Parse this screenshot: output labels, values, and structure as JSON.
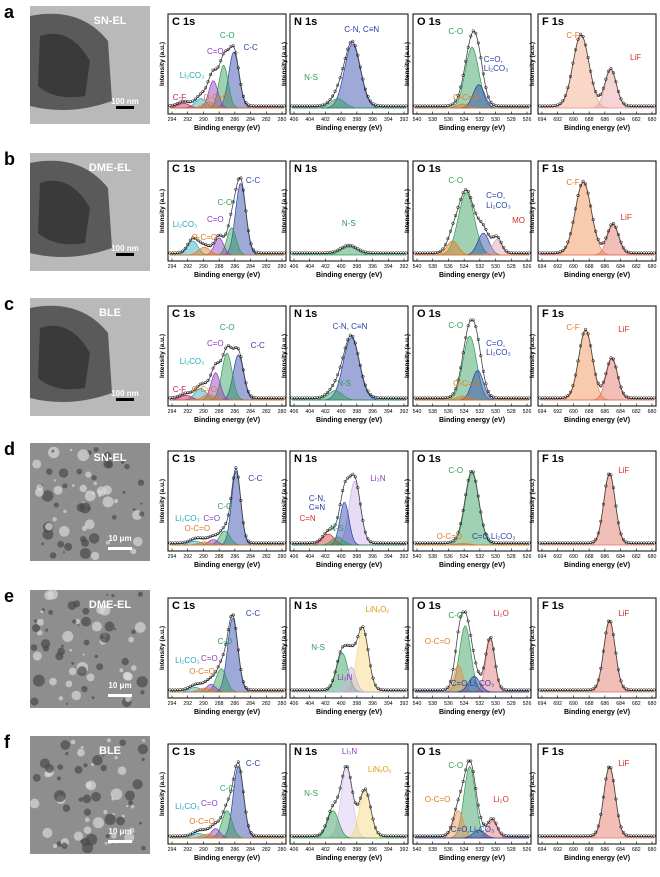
{
  "figure": {
    "rows": [
      {
        "letter": "a",
        "image_label": "SN-EL",
        "scale": "100 nm",
        "image_type": "tem",
        "panels": [
          {
            "title": "C 1s",
            "xticks": [
              "294",
              "292",
              "290",
              "288",
              "286",
              "284",
              "282",
              "280"
            ],
            "labels": [
              {
                "text": "C-O",
                "color": "#2e9a57"
              },
              {
                "text": "C=O",
                "color": "#8a3ab9"
              },
              {
                "text": "C-C",
                "color": "#2740a8"
              },
              {
                "text": "Li₂CO₃",
                "color": "#25a7b8"
              },
              {
                "text": "C-F",
                "color": "#c2185b"
              },
              {
                "text": "O-C=O",
                "color": "#e07a1f"
              }
            ]
          },
          {
            "title": "N 1s",
            "xticks": [
              "406",
              "404",
              "402",
              "400",
              "398",
              "396",
              "394",
              "392"
            ],
            "labels": [
              {
                "text": "C-N, C≡N",
                "color": "#2740a8"
              },
              {
                "text": "N-S",
                "color": "#2e9a57"
              }
            ]
          },
          {
            "title": "O 1s",
            "xticks": [
              "540",
              "538",
              "536",
              "534",
              "532",
              "530",
              "528",
              "526"
            ],
            "labels": [
              {
                "text": "C-O",
                "color": "#2e9a57"
              },
              {
                "text": "C=O,",
                "color": "#2740a8"
              },
              {
                "text": "Li₂CO₃",
                "color": "#2740a8"
              },
              {
                "text": "O-C=O",
                "color": "#e07a1f"
              }
            ]
          },
          {
            "title": "F 1s",
            "xticks": [
              "694",
              "692",
              "690",
              "688",
              "686",
              "684",
              "682",
              "680"
            ],
            "labels": [
              {
                "text": "C-F",
                "color": "#e07a1f"
              },
              {
                "text": "LiF",
                "color": "#d32f2f"
              }
            ]
          }
        ]
      },
      {
        "letter": "b",
        "image_label": "DME-EL",
        "scale": "100 nm",
        "image_type": "tem",
        "panels": [
          {
            "title": "C 1s",
            "xticks": [
              "294",
              "292",
              "290",
              "288",
              "286",
              "284",
              "282",
              "280"
            ],
            "labels": [
              {
                "text": "C-C",
                "color": "#2740a8"
              },
              {
                "text": "C-O",
                "color": "#2e9a57"
              },
              {
                "text": "C=O",
                "color": "#8a3ab9"
              },
              {
                "text": "Li₂CO₃",
                "color": "#25a7b8"
              },
              {
                "text": "O-C=O",
                "color": "#e07a1f"
              }
            ]
          },
          {
            "title": "N 1s",
            "xticks": [
              "406",
              "404",
              "402",
              "400",
              "398",
              "396",
              "394",
              "392"
            ],
            "labels": [
              {
                "text": "N-S",
                "color": "#2e9a57"
              }
            ]
          },
          {
            "title": "O 1s",
            "xticks": [
              "540",
              "538",
              "536",
              "534",
              "532",
              "530",
              "528",
              "526"
            ],
            "labels": [
              {
                "text": "C-O",
                "color": "#2e9a57"
              },
              {
                "text": "C=O,",
                "color": "#2740a8"
              },
              {
                "text": "Li₂CO₃",
                "color": "#2740a8"
              },
              {
                "text": "MO",
                "color": "#d32f2f"
              }
            ]
          },
          {
            "title": "F 1s",
            "xticks": [
              "694",
              "692",
              "690",
              "688",
              "686",
              "684",
              "682",
              "680"
            ],
            "labels": [
              {
                "text": "C-F",
                "color": "#e07a1f"
              },
              {
                "text": "LiF",
                "color": "#d32f2f"
              }
            ]
          }
        ]
      },
      {
        "letter": "c",
        "image_label": "BLE",
        "scale": "100 nm",
        "image_type": "tem",
        "panels": [
          {
            "title": "C 1s",
            "xticks": [
              "294",
              "292",
              "290",
              "288",
              "286",
              "284",
              "282",
              "280"
            ],
            "labels": [
              {
                "text": "C-O",
                "color": "#2e9a57"
              },
              {
                "text": "C=O",
                "color": "#8a3ab9"
              },
              {
                "text": "C-C",
                "color": "#2740a8"
              },
              {
                "text": "Li₂CO₃",
                "color": "#25a7b8"
              },
              {
                "text": "C-F",
                "color": "#c2185b"
              },
              {
                "text": "O-C=O",
                "color": "#e07a1f"
              }
            ]
          },
          {
            "title": "N 1s",
            "xticks": [
              "406",
              "404",
              "402",
              "400",
              "398",
              "396",
              "394",
              "392"
            ],
            "labels": [
              {
                "text": "C-N, C≡N",
                "color": "#2740a8"
              },
              {
                "text": "N-S",
                "color": "#2e9a57"
              }
            ]
          },
          {
            "title": "O 1s",
            "xticks": [
              "540",
              "538",
              "536",
              "534",
              "532",
              "530",
              "528",
              "526"
            ],
            "labels": [
              {
                "text": "C-O",
                "color": "#2e9a57"
              },
              {
                "text": "C=O,",
                "color": "#2740a8"
              },
              {
                "text": "Li₂CO₃",
                "color": "#2740a8"
              },
              {
                "text": "O-C=O",
                "color": "#e07a1f"
              }
            ]
          },
          {
            "title": "F 1s",
            "xticks": [
              "694",
              "692",
              "690",
              "688",
              "686",
              "684",
              "682",
              "680"
            ],
            "labels": [
              {
                "text": "C-F",
                "color": "#e07a1f"
              },
              {
                "text": "LiF",
                "color": "#d32f2f"
              }
            ]
          }
        ]
      },
      {
        "letter": "d",
        "image_label": "SN-EL",
        "scale": "10 μm",
        "image_type": "sem",
        "panels": [
          {
            "title": "C 1s",
            "xticks": [
              "294",
              "292",
              "290",
              "288",
              "286",
              "284",
              "282",
              "280"
            ],
            "labels": [
              {
                "text": "C-C",
                "color": "#2740a8"
              },
              {
                "text": "C-O",
                "color": "#2e9a57"
              },
              {
                "text": "Li₂CO₃",
                "color": "#25a7b8"
              },
              {
                "text": "C=O",
                "color": "#8a3ab9"
              },
              {
                "text": "O-C=O",
                "color": "#e07a1f"
              }
            ]
          },
          {
            "title": "N 1s",
            "xticks": [
              "406",
              "404",
              "402",
              "400",
              "398",
              "396",
              "394",
              "392"
            ],
            "labels": [
              {
                "text": "Li₃N",
                "color": "#8a3ab9"
              },
              {
                "text": "C-N,",
                "color": "#2740a8"
              },
              {
                "text": "C≡N",
                "color": "#2740a8"
              },
              {
                "text": "C=N",
                "color": "#d32f2f"
              },
              {
                "text": "N-S",
                "color": "#2e9a57"
              }
            ]
          },
          {
            "title": "O 1s",
            "xticks": [
              "540",
              "538",
              "536",
              "534",
              "532",
              "530",
              "528",
              "526"
            ],
            "labels": [
              {
                "text": "C-O",
                "color": "#2e9a57"
              },
              {
                "text": "O-C=O",
                "color": "#e07a1f"
              },
              {
                "text": "C=O,Li₂CO₃",
                "color": "#2740a8"
              }
            ]
          },
          {
            "title": "F 1s",
            "xticks": [
              "694",
              "692",
              "690",
              "688",
              "686",
              "684",
              "682",
              "680"
            ],
            "labels": [
              {
                "text": "LiF",
                "color": "#d32f2f"
              }
            ]
          }
        ]
      },
      {
        "letter": "e",
        "image_label": "DME-EL",
        "scale": "10 μm",
        "image_type": "sem",
        "panels": [
          {
            "title": "C 1s",
            "xticks": [
              "294",
              "292",
              "290",
              "288",
              "286",
              "284",
              "282",
              "280"
            ],
            "labels": [
              {
                "text": "C-C",
                "color": "#2740a8"
              },
              {
                "text": "C-O",
                "color": "#2e9a57"
              },
              {
                "text": "Li₂CO₃",
                "color": "#25a7b8"
              },
              {
                "text": "C=O",
                "color": "#8a3ab9"
              },
              {
                "text": "O-C=O",
                "color": "#e07a1f"
              }
            ]
          },
          {
            "title": "N 1s",
            "xticks": [
              "406",
              "404",
              "402",
              "400",
              "398",
              "396",
              "394",
              "392"
            ],
            "labels": [
              {
                "text": "LiNₓOᵧ",
                "color": "#d4a017"
              },
              {
                "text": "N-S",
                "color": "#2e9a57"
              },
              {
                "text": "Li₃N",
                "color": "#8a3ab9"
              }
            ]
          },
          {
            "title": "O 1s",
            "xticks": [
              "540",
              "538",
              "536",
              "534",
              "532",
              "530",
              "528",
              "526"
            ],
            "labels": [
              {
                "text": "C-O",
                "color": "#2e9a57"
              },
              {
                "text": "Li₂O",
                "color": "#d32f2f"
              },
              {
                "text": "O-C=O",
                "color": "#e07a1f"
              },
              {
                "text": "C=O,Li₂CO₃",
                "color": "#2740a8"
              }
            ]
          },
          {
            "title": "F 1s",
            "xticks": [
              "694",
              "692",
              "690",
              "688",
              "686",
              "684",
              "682",
              "680"
            ],
            "labels": [
              {
                "text": "LiF",
                "color": "#d32f2f"
              }
            ]
          }
        ]
      },
      {
        "letter": "f",
        "image_label": "BLE",
        "scale": "10 μm",
        "image_type": "sem",
        "panels": [
          {
            "title": "C 1s",
            "xticks": [
              "294",
              "292",
              "290",
              "288",
              "286",
              "284",
              "282",
              "280"
            ],
            "labels": [
              {
                "text": "C-C",
                "color": "#2740a8"
              },
              {
                "text": "C-O",
                "color": "#2e9a57"
              },
              {
                "text": "Li₂CO₃",
                "color": "#25a7b8"
              },
              {
                "text": "C=O",
                "color": "#8a3ab9"
              },
              {
                "text": "O-C=O",
                "color": "#e07a1f"
              }
            ]
          },
          {
            "title": "N 1s",
            "xticks": [
              "406",
              "404",
              "402",
              "400",
              "398",
              "396",
              "394",
              "392"
            ],
            "labels": [
              {
                "text": "Li₃N",
                "color": "#8a3ab9"
              },
              {
                "text": "LiNₓOᵧ",
                "color": "#d4a017"
              },
              {
                "text": "N-S",
                "color": "#2e9a57"
              }
            ]
          },
          {
            "title": "O 1s",
            "xticks": [
              "540",
              "538",
              "536",
              "534",
              "532",
              "530",
              "528",
              "526"
            ],
            "labels": [
              {
                "text": "C-O",
                "color": "#2e9a57"
              },
              {
                "text": "O-C=O",
                "color": "#e07a1f"
              },
              {
                "text": "Li₂O",
                "color": "#d32f2f"
              },
              {
                "text": "C=O,Li₂CO₃",
                "color": "#2740a8"
              }
            ]
          },
          {
            "title": "F 1s",
            "xticks": [
              "694",
              "692",
              "690",
              "688",
              "686",
              "684",
              "682",
              "680"
            ],
            "labels": [
              {
                "text": "LiF",
                "color": "#d32f2f"
              }
            ]
          }
        ]
      }
    ],
    "ylabel": "Intensity (a.u.)",
    "xlabel": "Binding energy (eV)"
  }
}
